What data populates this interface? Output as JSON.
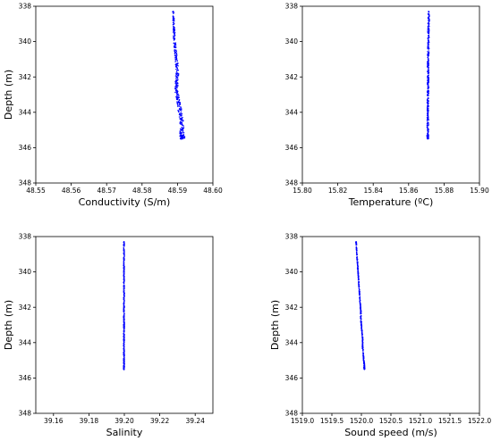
{
  "colors": {
    "series": "#0000ff",
    "axes": "#000000",
    "background": "#ffffff"
  },
  "chart_data": [
    {
      "type": "scatter",
      "xlabel": "Conductivity (S/m)",
      "ylabel": "Depth (m)",
      "xlim": [
        48.55,
        48.6
      ],
      "ylim": [
        348,
        338
      ],
      "y_inverted": true,
      "xticks": [
        "48.55",
        "48.56",
        "48.57",
        "48.58",
        "48.59",
        "48.60"
      ],
      "yticks": [
        "338",
        "340",
        "342",
        "344",
        "346",
        "348"
      ],
      "series": [
        {
          "x": [
            48.5888,
            48.5889,
            48.589,
            48.5891,
            48.5893,
            48.5896,
            48.5898,
            48.59,
            48.5898,
            48.5897,
            48.5899,
            48.5903,
            48.5906,
            48.5909,
            48.5912,
            48.5913,
            48.5912,
            48.5915,
            48.5914
          ],
          "y": [
            338.3,
            338.8,
            339.3,
            339.8,
            340.3,
            340.8,
            341.3,
            341.8,
            342.2,
            342.6,
            343.0,
            343.4,
            343.8,
            344.2,
            344.6,
            345.0,
            345.3,
            345.4,
            345.5
          ]
        }
      ]
    },
    {
      "type": "scatter",
      "xlabel": "Temperature (ºC)",
      "ylabel": "",
      "xlim": [
        15.8,
        15.9
      ],
      "ylim": [
        348,
        338
      ],
      "y_inverted": true,
      "xticks": [
        "15.80",
        "15.82",
        "15.84",
        "15.86",
        "15.88",
        "15.90"
      ],
      "yticks": [
        "338",
        "340",
        "342",
        "344",
        "346",
        "348"
      ],
      "series": [
        {
          "x": [
            15.8713,
            15.8713,
            15.8712,
            15.8712,
            15.8711,
            15.8711,
            15.871,
            15.871,
            15.871,
            15.871,
            15.8709,
            15.8709,
            15.8709,
            15.8709,
            15.8708,
            15.8708,
            15.8708,
            15.8708,
            15.8708
          ],
          "y": [
            338.3,
            338.8,
            339.3,
            339.8,
            340.3,
            340.8,
            341.3,
            341.8,
            342.2,
            342.6,
            343.0,
            343.4,
            343.8,
            344.2,
            344.6,
            345.0,
            345.3,
            345.4,
            345.5
          ]
        }
      ]
    },
    {
      "type": "scatter",
      "xlabel": "Salinity",
      "ylabel": "Depth (m)",
      "xlim": [
        39.15,
        39.25
      ],
      "ylim": [
        348,
        338
      ],
      "y_inverted": true,
      "xticks": [
        "39.16",
        "39.18",
        "39.20",
        "39.22",
        "39.24"
      ],
      "yticks": [
        "338",
        "340",
        "342",
        "344",
        "346",
        "348"
      ],
      "series": [
        {
          "x": [
            39.1998,
            39.1998,
            39.1998,
            39.1998,
            39.1998,
            39.1998,
            39.1998,
            39.1998,
            39.1998,
            39.1998,
            39.1998,
            39.1998,
            39.1998,
            39.1998,
            39.1998,
            39.1998,
            39.1998,
            39.1998,
            39.1998
          ],
          "y": [
            338.3,
            338.8,
            339.3,
            339.8,
            340.3,
            340.8,
            341.3,
            341.8,
            342.2,
            342.6,
            343.0,
            343.4,
            343.8,
            344.2,
            344.6,
            345.0,
            345.3,
            345.4,
            345.5
          ]
        }
      ]
    },
    {
      "type": "scatter",
      "xlabel": "Sound speed (m/s)",
      "ylabel": "Depth (m)",
      "xlim": [
        1519.0,
        1522.0
      ],
      "ylim": [
        348,
        338
      ],
      "y_inverted": true,
      "xticks": [
        "1519.0",
        "1519.5",
        "1520.0",
        "1520.5",
        "1521.0",
        "1521.5",
        "1522.0"
      ],
      "yticks": [
        "338",
        "340",
        "342",
        "344",
        "346",
        "348"
      ],
      "series": [
        {
          "x": [
            1519.91,
            1519.92,
            1519.93,
            1519.94,
            1519.95,
            1519.96,
            1519.97,
            1519.98,
            1519.99,
            1519.99,
            1520.0,
            1520.01,
            1520.02,
            1520.02,
            1520.03,
            1520.04,
            1520.05,
            1520.05,
            1520.05
          ],
          "y": [
            338.3,
            338.8,
            339.3,
            339.8,
            340.3,
            340.8,
            341.3,
            341.8,
            342.2,
            342.6,
            343.0,
            343.4,
            343.8,
            344.2,
            344.6,
            345.0,
            345.3,
            345.4,
            345.5
          ]
        }
      ]
    }
  ]
}
